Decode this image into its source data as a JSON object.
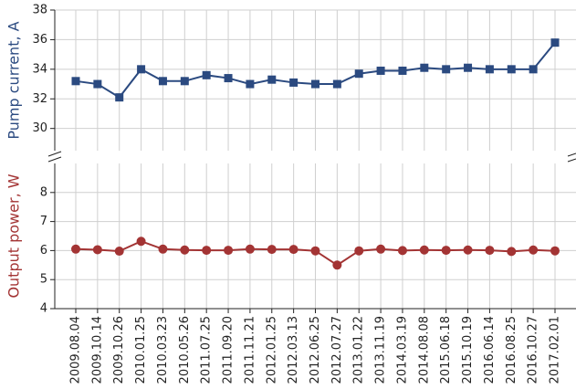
{
  "chart_data": [
    {
      "type": "line",
      "ylabel": "Pump current, A",
      "color": "#2b4a80",
      "marker": "square",
      "ylim": [
        28.5,
        38
      ],
      "yticks": [
        30,
        32,
        34,
        36,
        38
      ],
      "grid": true,
      "values": [
        33.2,
        33.0,
        32.1,
        34.0,
        33.2,
        33.2,
        33.6,
        33.4,
        33.0,
        33.3,
        33.1,
        33.0,
        33.0,
        33.7,
        33.9,
        33.9,
        34.1,
        34.0,
        34.1,
        34.0,
        34.0,
        34.0,
        35.8
      ]
    },
    {
      "type": "line",
      "ylabel": "Output power, W",
      "color": "#a33434",
      "marker": "circle",
      "ylim": [
        4,
        9
      ],
      "yticks": [
        4,
        5,
        6,
        7,
        8
      ],
      "grid": true,
      "categories": [
        "2009.08.04",
        "2009.10.14",
        "2009.10.26",
        "2010.01.25",
        "2010.03.23",
        "2010.05.26",
        "2011.07.25",
        "2011.09.20",
        "2011.11.21",
        "2012.01.25",
        "2012.03.13",
        "2012.06.25",
        "2012.07.27",
        "2013.01.22",
        "2013.11.19",
        "2014.03.19",
        "2014.08.08",
        "2015.06.18",
        "2015.10.19",
        "2016.06.14",
        "2016.08.25",
        "2016.10.27",
        "2017.02.01"
      ],
      "values": [
        6.05,
        6.03,
        5.98,
        6.32,
        6.05,
        6.02,
        6.01,
        6.01,
        6.05,
        6.04,
        6.04,
        5.99,
        5.5,
        5.99,
        6.05,
        6.0,
        6.02,
        6.01,
        6.02,
        6.01,
        5.97,
        6.02,
        5.99
      ]
    }
  ]
}
